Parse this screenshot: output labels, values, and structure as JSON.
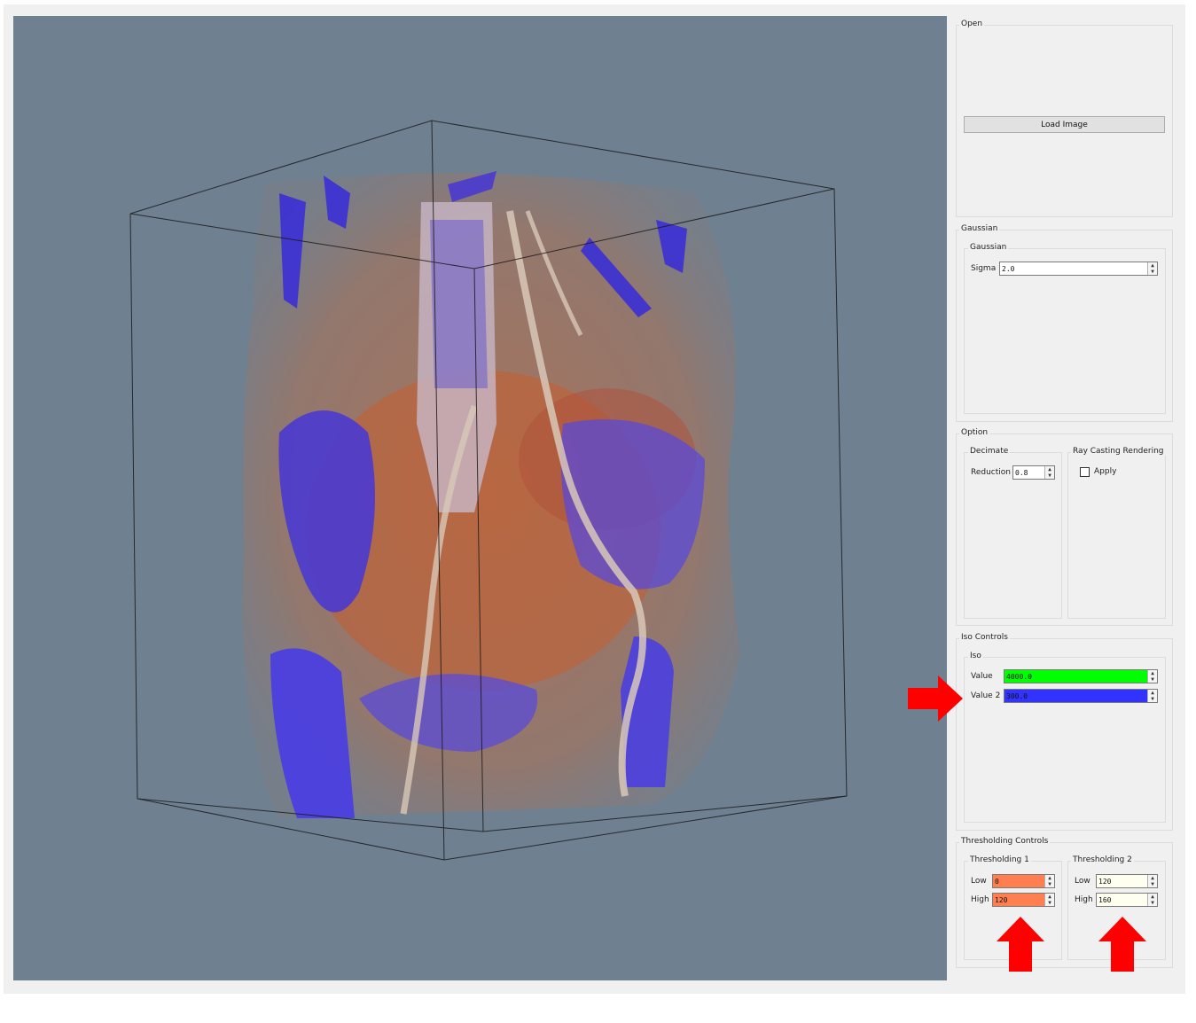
{
  "open": {
    "title": "Open",
    "load_button": "Load Image"
  },
  "gaussian": {
    "title": "Gaussian",
    "inner_title": "Gaussian",
    "sigma_label": "Sigma",
    "sigma_value": "2.0"
  },
  "option": {
    "title": "Option",
    "decimate_title": "Decimate",
    "reduction_label": "Reduction",
    "reduction_value": "0.8",
    "raycast_title": "Ray Casting Rendering",
    "apply_label": "Apply",
    "apply_checked": false
  },
  "iso": {
    "title": "Iso Controls",
    "inner_title": "Iso",
    "value_label": "Value",
    "value": "4000.0",
    "value_color": "#00ff00",
    "value2_label": "Value 2",
    "value2": "300.0",
    "value2_color": "#3333ff"
  },
  "thresholding": {
    "title": "Thresholding Controls",
    "t1": {
      "title": "Thresholding 1",
      "low_label": "Low",
      "low": "0",
      "high_label": "High",
      "high": "120",
      "color": "#ff7f50"
    },
    "t2": {
      "title": "Thresholding 2",
      "low_label": "Low",
      "low": "120",
      "high_label": "High",
      "high": "160",
      "color": "#fffff0"
    }
  },
  "annotation_color": "#ff0000",
  "viewport_bg": "#6f8090"
}
